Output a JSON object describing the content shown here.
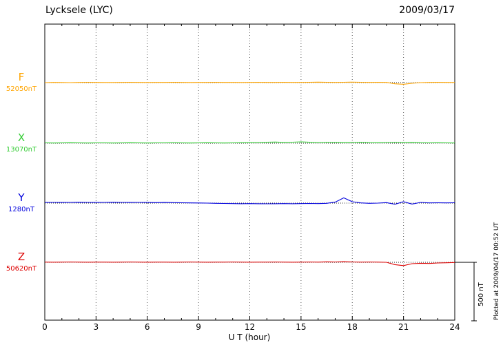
{
  "header": {
    "station": "Lycksele (LYC)",
    "date": "2009/03/17"
  },
  "footer": {
    "plotted_at": "Plotted at 2009/04/17 00:52 UT"
  },
  "scale_bar": {
    "label": "500 nT",
    "nT": 500
  },
  "chart_data": {
    "type": "line",
    "xlabel": "U T (hour)",
    "x_range": [
      0,
      24
    ],
    "x_ticks": [
      0,
      3,
      6,
      9,
      12,
      15,
      18,
      21,
      24
    ],
    "sample_step_hours": 0.5,
    "grid": "dotted-vertical-every-3h",
    "value_units": "nT offset from baseline",
    "series": [
      {
        "name": "F",
        "baseline_label": "52050nT",
        "baseline_nT": 52050,
        "color": "#FFA500",
        "values": [
          0,
          2,
          1,
          0,
          2,
          3,
          2,
          1,
          1,
          2,
          3,
          2,
          1,
          2,
          2,
          3,
          2,
          1,
          2,
          2,
          3,
          2,
          2,
          1,
          2,
          3,
          2,
          2,
          3,
          2,
          2,
          3,
          4,
          3,
          2,
          3,
          4,
          3,
          2,
          3,
          2,
          -10,
          -14,
          -6,
          0,
          2,
          3,
          2,
          1
        ]
      },
      {
        "name": "X",
        "baseline_label": "13070nT",
        "baseline_nT": 13070,
        "color": "#33CC33",
        "values": [
          3,
          2,
          3,
          4,
          3,
          2,
          3,
          3,
          2,
          3,
          4,
          3,
          2,
          3,
          3,
          4,
          3,
          2,
          3,
          4,
          3,
          2,
          3,
          4,
          5,
          6,
          8,
          10,
          7,
          9,
          12,
          8,
          6,
          9,
          7,
          5,
          6,
          8,
          5,
          4,
          6,
          9,
          5,
          7,
          4,
          3,
          4,
          3,
          2
        ]
      },
      {
        "name": "Y",
        "baseline_label": "1280nT",
        "baseline_nT": 1280,
        "color": "#0000DD",
        "values": [
          5,
          6,
          5,
          6,
          7,
          6,
          5,
          6,
          7,
          6,
          5,
          6,
          5,
          4,
          5,
          4,
          3,
          2,
          1,
          0,
          -2,
          -3,
          -4,
          -5,
          -4,
          -5,
          -6,
          -5,
          -4,
          -5,
          -4,
          -3,
          -4,
          -2,
          8,
          45,
          12,
          2,
          -2,
          0,
          4,
          -10,
          12,
          -8,
          6,
          2,
          3,
          2,
          3
        ]
      },
      {
        "name": "Z",
        "baseline_label": "50620nT",
        "baseline_nT": 50620,
        "color": "#DD0000",
        "values": [
          2,
          1,
          2,
          3,
          2,
          1,
          2,
          2,
          1,
          2,
          3,
          2,
          1,
          2,
          2,
          1,
          2,
          3,
          2,
          1,
          2,
          2,
          3,
          2,
          1,
          2,
          2,
          3,
          2,
          1,
          2,
          3,
          2,
          4,
          3,
          5,
          3,
          2,
          3,
          2,
          0,
          -20,
          -28,
          -12,
          -8,
          -10,
          -6,
          -4,
          -2
        ]
      }
    ]
  }
}
